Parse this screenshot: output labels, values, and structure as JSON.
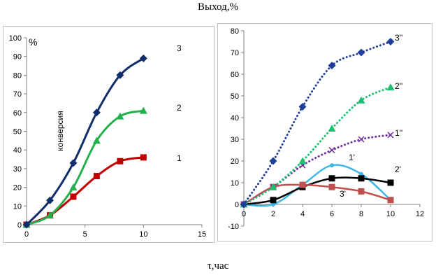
{
  "figure": {
    "title": "Выход,%",
    "xlabel": "τ,час"
  },
  "chart_data": [
    {
      "type": "line",
      "ylabel": "%",
      "annotation": "конверсия",
      "xlim": [
        0,
        15
      ],
      "ylim": [
        0,
        100
      ],
      "x_ticks": [
        0,
        5,
        10,
        15
      ],
      "y_ticks": [
        0,
        10,
        20,
        30,
        40,
        50,
        60,
        70,
        80,
        90,
        100
      ],
      "grid": false,
      "series": [
        {
          "name": "1",
          "color": "#c00000",
          "marker": "square",
          "x": [
            0,
            2,
            4,
            6,
            8,
            10
          ],
          "y": [
            0,
            5,
            15,
            26,
            34,
            36
          ]
        },
        {
          "name": "2",
          "color": "#22b14c",
          "marker": "triangle",
          "x": [
            0,
            2,
            4,
            6,
            8,
            10
          ],
          "y": [
            0,
            5,
            20,
            45,
            58,
            61
          ]
        },
        {
          "name": "3",
          "color": "#0f2d6b",
          "marker": "diamond",
          "x": [
            0,
            2,
            4,
            6,
            8,
            10
          ],
          "y": [
            0,
            13,
            33,
            60,
            80,
            89
          ]
        }
      ]
    },
    {
      "type": "line",
      "xlim": [
        0,
        12
      ],
      "ylim": [
        -10,
        80
      ],
      "x_ticks": [
        0,
        2,
        4,
        6,
        8,
        10,
        12
      ],
      "y_ticks": [
        -10,
        0,
        10,
        20,
        30,
        40,
        50,
        60,
        70,
        80
      ],
      "grid": false,
      "series": [
        {
          "name": "1'",
          "color": "#3fb5e5",
          "marker": "circle",
          "dash": "solid",
          "x": [
            0,
            2,
            4,
            6,
            8,
            10
          ],
          "y": [
            0,
            0,
            9,
            18,
            14,
            2
          ]
        },
        {
          "name": "2'",
          "color": "#000000",
          "marker": "square",
          "dash": "solid",
          "x": [
            0,
            2,
            4,
            6,
            8,
            10
          ],
          "y": [
            0,
            2,
            8,
            12,
            12,
            10
          ]
        },
        {
          "name": "3'",
          "color": "#c0504d",
          "marker": "square",
          "dash": "solid",
          "x": [
            0,
            2,
            4,
            6,
            8,
            10
          ],
          "y": [
            0,
            8,
            9,
            8,
            6,
            2
          ]
        },
        {
          "name": "1''",
          "color": "#7030a0",
          "marker": "cross",
          "dash": "dotted",
          "x": [
            0,
            2,
            4,
            6,
            8,
            10
          ],
          "y": [
            0,
            8,
            18,
            25,
            30,
            32
          ]
        },
        {
          "name": "2''",
          "color": "#1fbf6f",
          "marker": "triangle",
          "dash": "dotted",
          "x": [
            0,
            2,
            4,
            6,
            8,
            10
          ],
          "y": [
            0,
            8,
            20,
            35,
            48,
            54
          ]
        },
        {
          "name": "3''",
          "color": "#1f3f99",
          "marker": "diamond",
          "dash": "dotted",
          "x": [
            0,
            2,
            4,
            6,
            8,
            10
          ],
          "y": [
            0,
            20,
            45,
            64,
            70,
            75
          ]
        }
      ]
    }
  ]
}
